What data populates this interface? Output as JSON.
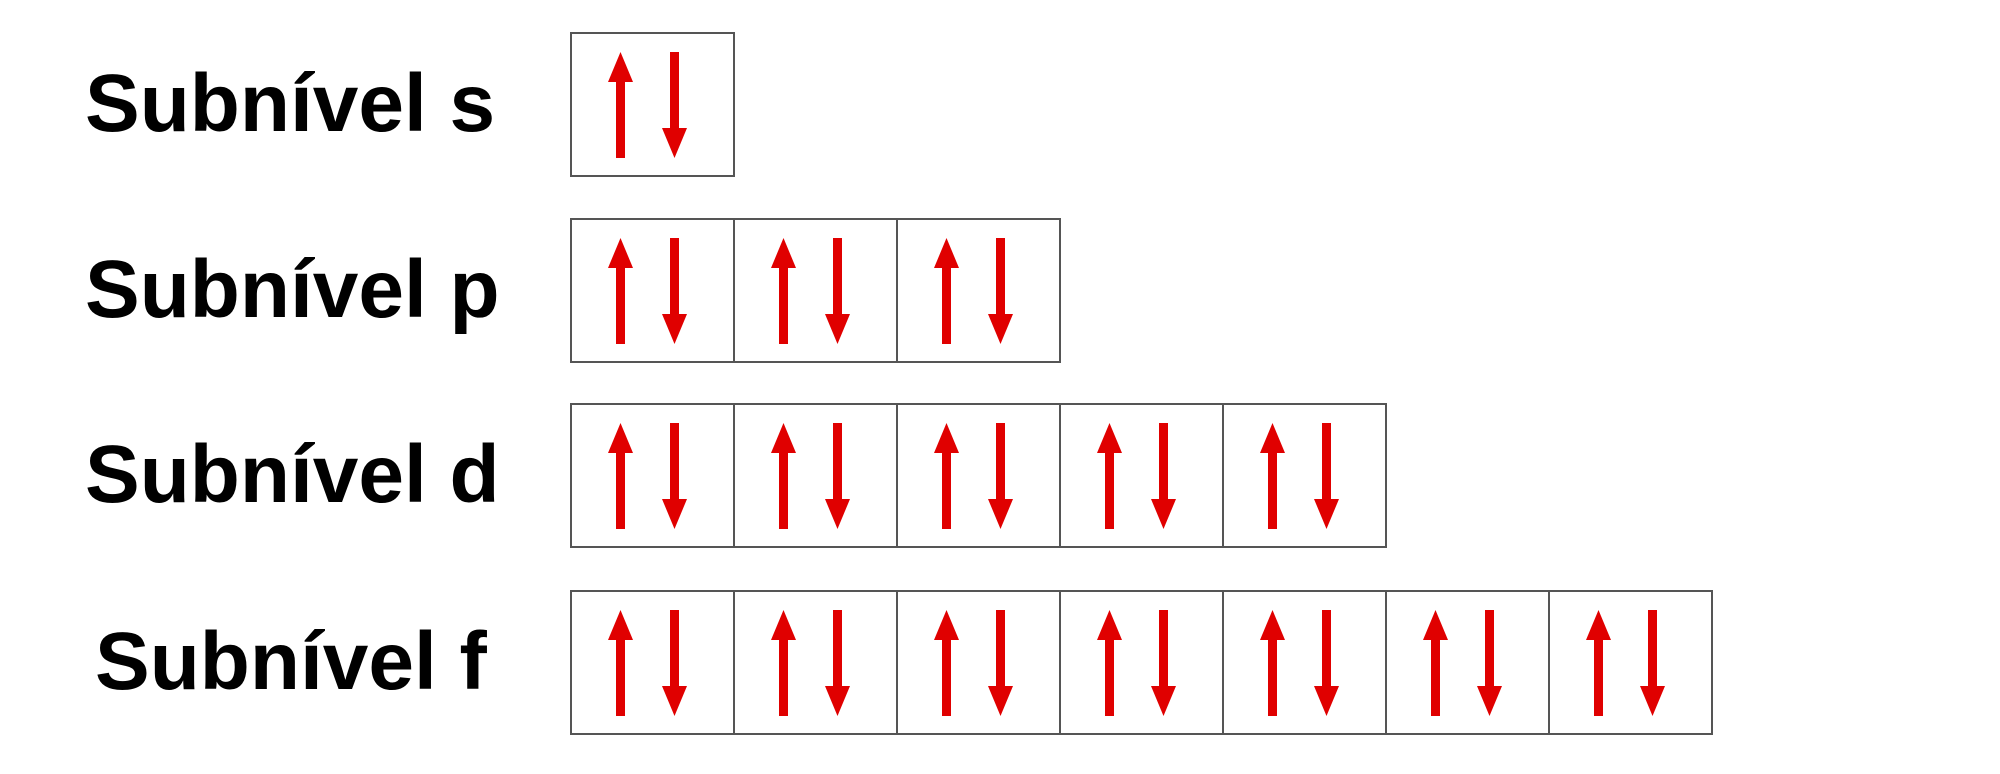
{
  "colors": {
    "arrow": "#e00000",
    "border": "#555555",
    "text": "#000000",
    "background": "#ffffff"
  },
  "sublevels": [
    {
      "label": "Subnível s",
      "orbitals": 1
    },
    {
      "label": "Subnível p",
      "orbitals": 3
    },
    {
      "label": "Subnível d",
      "orbitals": 5
    },
    {
      "label": "Subnível f",
      "orbitals": 7
    }
  ],
  "orbital_content": {
    "spin_up_icon": "arrow-up-icon",
    "spin_down_icon": "arrow-down-icon"
  }
}
